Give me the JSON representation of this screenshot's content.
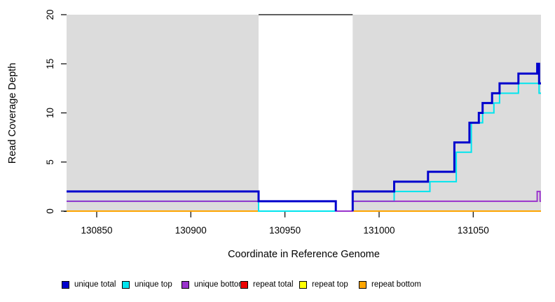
{
  "chart_data": {
    "type": "line",
    "subtype": "step-coverage",
    "title": "",
    "xlabel": "Coordinate in Reference Genome",
    "ylabel": "Read Coverage Depth",
    "xlim": [
      130834,
      131086
    ],
    "ylim": [
      0,
      20
    ],
    "xticks": [
      130850,
      130900,
      130950,
      131000,
      131050
    ],
    "xtick_labels": [
      "130850",
      "130900",
      "130950",
      "131000",
      "131050"
    ],
    "yticks": [
      0,
      5,
      10,
      15,
      20
    ],
    "ytick_labels": [
      "0",
      "5",
      "10",
      "15",
      "20"
    ],
    "grid": false,
    "plot_background": "#ffffff",
    "shaded_color": "#dcdcdc",
    "shaded_regions": [
      [
        130834,
        130936
      ],
      [
        130986,
        131086
      ]
    ],
    "gap_region": [
      130936,
      130986
    ],
    "gap_top_line": {
      "x0": 130936,
      "x1": 130986,
      "y": 20,
      "color": "#000000"
    },
    "axis_color": "#000000",
    "series": [
      {
        "name": "repeat total",
        "color": "#ee0000",
        "width": 1.2,
        "steps": [
          [
            130834,
            0
          ]
        ]
      },
      {
        "name": "repeat top",
        "color": "#ffff00",
        "width": 1.2,
        "steps": [
          [
            130834,
            0
          ]
        ]
      },
      {
        "name": "repeat bottom",
        "color": "#ffa500",
        "width": 2,
        "steps": [
          [
            130834,
            0
          ]
        ]
      },
      {
        "name": "unique top",
        "color": "#00e5ee",
        "width": 2,
        "steps": [
          [
            130834,
            1
          ],
          [
            130936,
            0
          ],
          [
            130986,
            1
          ],
          [
            131008,
            2
          ],
          [
            131027,
            3
          ],
          [
            131041,
            6
          ],
          [
            131049,
            9
          ],
          [
            131055,
            10
          ],
          [
            131061,
            11
          ],
          [
            131064,
            12
          ],
          [
            131074,
            13
          ],
          [
            131085,
            12
          ]
        ]
      },
      {
        "name": "unique bottom",
        "color": "#9932cc",
        "width": 2,
        "steps": [
          [
            130834,
            1
          ],
          [
            130977,
            0
          ],
          [
            130986,
            1
          ],
          [
            131084,
            2
          ],
          [
            131085.5,
            1
          ]
        ]
      },
      {
        "name": "unique total",
        "color": "#0000cd",
        "width": 3,
        "steps": [
          [
            130834,
            2
          ],
          [
            130936,
            1
          ],
          [
            130977,
            null
          ],
          [
            130986,
            2
          ],
          [
            131008,
            3
          ],
          [
            131026,
            4
          ],
          [
            131040,
            7
          ],
          [
            131048,
            9
          ],
          [
            131053,
            10
          ],
          [
            131055,
            11
          ],
          [
            131060,
            12
          ],
          [
            131064,
            13
          ],
          [
            131074,
            14
          ],
          [
            131084,
            15
          ],
          [
            131085,
            13
          ]
        ]
      }
    ],
    "legend_position": "bottom"
  },
  "legend": {
    "items": [
      {
        "label": "unique total",
        "color": "#0000cd"
      },
      {
        "label": "unique top",
        "color": "#00e5ee"
      },
      {
        "label": "unique bottom",
        "color": "#9932cc"
      },
      {
        "label": "repeat total",
        "color": "#ee0000"
      },
      {
        "label": "repeat top",
        "color": "#ffff00"
      },
      {
        "label": "repeat bottom",
        "color": "#ffa500"
      }
    ]
  }
}
